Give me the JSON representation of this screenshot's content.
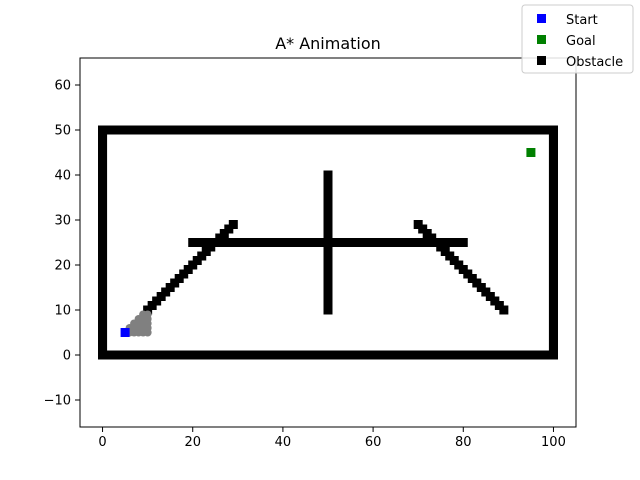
{
  "chart_data": {
    "type": "scatter",
    "title": "A* Animation",
    "xlabel": "",
    "ylabel": "",
    "xlim": [
      -5,
      105
    ],
    "ylim": [
      -16,
      66
    ],
    "xticks": [
      0,
      20,
      40,
      60,
      80,
      100
    ],
    "yticks": [
      -10,
      0,
      10,
      20,
      30,
      40,
      50,
      60
    ],
    "grid": false,
    "legend": {
      "placement": "top-right",
      "entries": [
        "Start",
        "Goal",
        "Obstacle"
      ]
    },
    "series": [
      {
        "name": "Obstacle",
        "color": "#000000",
        "marker": "square",
        "segments": [
          {
            "from": [
              0,
              0
            ],
            "to": [
              100,
              0
            ],
            "step": 1
          },
          {
            "from": [
              0,
              50
            ],
            "to": [
              100,
              50
            ],
            "step": 1
          },
          {
            "from": [
              0,
              0
            ],
            "to": [
              0,
              50
            ],
            "step": 1
          },
          {
            "from": [
              100,
              0
            ],
            "to": [
              100,
              50
            ],
            "step": 1
          },
          {
            "from": [
              20,
              25
            ],
            "to": [
              80,
              25
            ],
            "step": 1
          },
          {
            "from": [
              50,
              10
            ],
            "to": [
              50,
              40
            ],
            "step": 1
          },
          {
            "from": [
              10,
              10
            ],
            "to": [
              29,
              29
            ],
            "step": 1
          },
          {
            "from": [
              70,
              29
            ],
            "to": [
              89,
              10
            ],
            "step": 1
          }
        ]
      },
      {
        "name": "",
        "color": "#808080",
        "marker": "circle",
        "points": [
          [
            6,
            5
          ],
          [
            7,
            5
          ],
          [
            8,
            5
          ],
          [
            9,
            5
          ],
          [
            10,
            5
          ],
          [
            6,
            6
          ],
          [
            7,
            6
          ],
          [
            8,
            6
          ],
          [
            9,
            6
          ],
          [
            10,
            6
          ],
          [
            7,
            7
          ],
          [
            8,
            7
          ],
          [
            9,
            7
          ],
          [
            10,
            7
          ],
          [
            8,
            8
          ],
          [
            9,
            8
          ],
          [
            10,
            8
          ],
          [
            9,
            9
          ],
          [
            10,
            9
          ]
        ]
      },
      {
        "name": "Start",
        "color": "#0000ff",
        "marker": "square",
        "points": [
          [
            5,
            5
          ]
        ]
      },
      {
        "name": "Goal",
        "color": "#008000",
        "marker": "square",
        "points": [
          [
            95,
            45
          ]
        ]
      }
    ]
  }
}
